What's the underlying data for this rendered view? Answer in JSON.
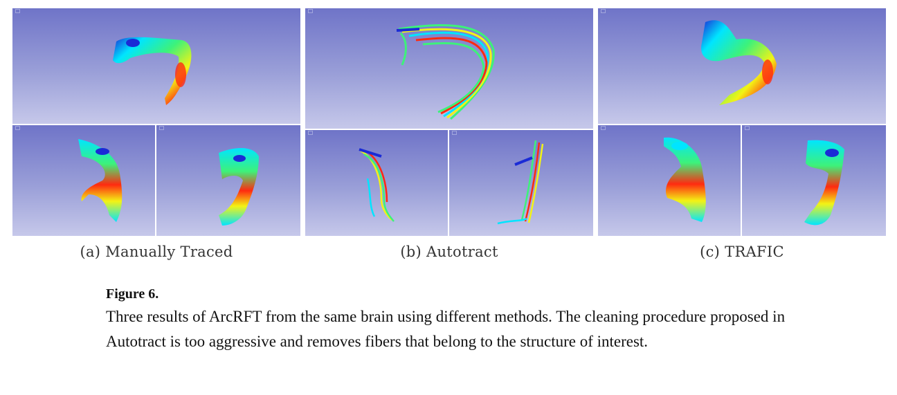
{
  "panels": [
    {
      "caption": "(a) Manually Traced"
    },
    {
      "caption": "(b) Autotract"
    },
    {
      "caption": "(c) TRAFIC"
    }
  ],
  "figure": {
    "title": "Figure 6.",
    "body": "Three results of ArcRFT from the same brain using different methods. The cleaning procedure proposed in Autotract is too aggressive and removes fibers that belong to the structure of interest."
  },
  "colors": {
    "background_top": "#6f74c8",
    "background_bottom": "#c6c8ea",
    "fiber_palette": [
      "#1a2bd6",
      "#00e5ff",
      "#3df27a",
      "#f3f315",
      "#ff2a10"
    ]
  }
}
